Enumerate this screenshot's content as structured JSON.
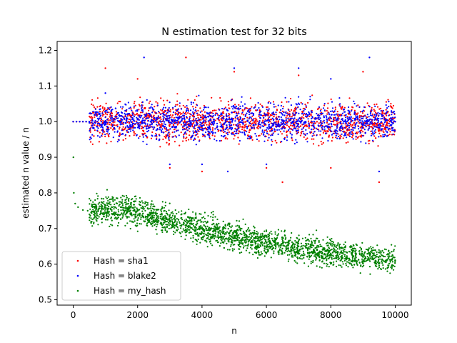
{
  "chart_data": {
    "type": "scatter",
    "title": "N estimation test for 32 bits",
    "xlabel": "n",
    "ylabel": "estimated n value / n",
    "xlim": [
      -500,
      10500
    ],
    "ylim": [
      0.485,
      1.225
    ],
    "xticks": [
      0,
      2000,
      4000,
      6000,
      8000,
      10000
    ],
    "yticks": [
      0.5,
      0.6,
      0.7,
      0.8,
      0.9,
      1.0,
      1.1,
      1.2
    ],
    "legend_position": "lower-left",
    "series": [
      {
        "name": "Hash = sha1",
        "color": "#ff0000",
        "marker": "dot",
        "points": [
          [
            0,
            1.0
          ],
          [
            100,
            1.0
          ],
          [
            200,
            1.0
          ],
          [
            300,
            1.0
          ],
          [
            400,
            1.0
          ],
          [
            500,
            1.0
          ],
          [
            1000,
            1.15
          ],
          [
            2000,
            1.12
          ],
          [
            3000,
            0.87
          ],
          [
            3500,
            1.18
          ],
          [
            4000,
            0.86
          ],
          [
            5000,
            1.14
          ],
          [
            6000,
            0.87
          ],
          [
            6500,
            0.83
          ],
          [
            7000,
            1.13
          ],
          [
            8000,
            0.87
          ],
          [
            9000,
            1.14
          ],
          [
            9500,
            0.83
          ],
          [
            10000,
            1.0
          ]
        ],
        "trend": {
          "center": [
            [
              500,
              1.0
            ],
            [
              10000,
              1.0
            ]
          ],
          "band_low": 0.88,
          "band_high": 1.12
        }
      },
      {
        "name": "Hash = blake2",
        "color": "#0000ff",
        "marker": "dot",
        "points": [
          [
            0,
            1.0
          ],
          [
            100,
            1.0
          ],
          [
            200,
            1.0
          ],
          [
            300,
            1.0
          ],
          [
            400,
            1.0
          ],
          [
            500,
            1.0
          ],
          [
            1000,
            1.08
          ],
          [
            2200,
            1.18
          ],
          [
            3000,
            0.88
          ],
          [
            4000,
            0.88
          ],
          [
            4800,
            0.86
          ],
          [
            5000,
            1.15
          ],
          [
            6000,
            0.88
          ],
          [
            7000,
            1.15
          ],
          [
            8000,
            1.12
          ],
          [
            9200,
            1.18
          ],
          [
            9500,
            0.86
          ],
          [
            10000,
            1.0
          ]
        ],
        "trend": {
          "center": [
            [
              500,
              1.0
            ],
            [
              10000,
              1.0
            ]
          ],
          "band_low": 0.89,
          "band_high": 1.11
        }
      },
      {
        "name": "Hash = my_hash",
        "color": "#008000",
        "marker": "dot",
        "points": [
          [
            5,
            0.9
          ],
          [
            20,
            0.8
          ],
          [
            60,
            0.77
          ],
          [
            150,
            0.76
          ],
          [
            300,
            0.752
          ],
          [
            450,
            0.75
          ],
          [
            600,
            0.76
          ],
          [
            1000,
            0.76
          ],
          [
            1500,
            0.76
          ],
          [
            2000,
            0.75
          ],
          [
            3000,
            0.72
          ],
          [
            4000,
            0.7
          ],
          [
            5000,
            0.68
          ],
          [
            6000,
            0.66
          ],
          [
            7000,
            0.65
          ],
          [
            8000,
            0.63
          ],
          [
            9000,
            0.62
          ],
          [
            10000,
            0.61
          ]
        ],
        "trend": {
          "center": [
            [
              500,
              0.75
            ],
            [
              1500,
              0.755
            ],
            [
              2500,
              0.735
            ],
            [
              4000,
              0.7
            ],
            [
              6000,
              0.66
            ],
            [
              8000,
              0.63
            ],
            [
              10000,
              0.61
            ]
          ],
          "band_low": 0.055,
          "band_high": 0.06
        }
      }
    ]
  }
}
